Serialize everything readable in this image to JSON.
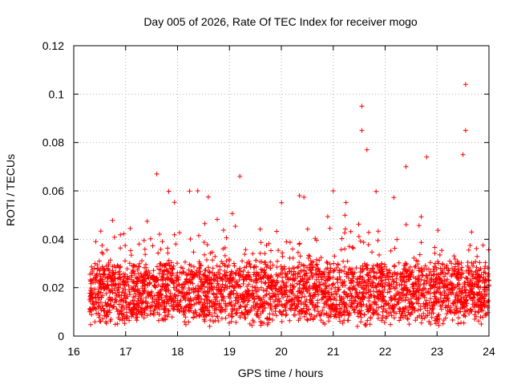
{
  "chart_data": {
    "type": "scatter",
    "title": "Day 005 of 2026, Rate Of TEC Index for receiver mogo",
    "xlabel": "GPS time / hours",
    "ylabel": "ROTI / TECUs",
    "xlim": [
      16,
      24
    ],
    "ylim": [
      0,
      0.12
    ],
    "x_ticks": [
      "16",
      "17",
      "18",
      "19",
      "20",
      "21",
      "22",
      "23",
      "24"
    ],
    "y_ticks": [
      "0",
      "0.02",
      "0.04",
      "0.06",
      "0.08",
      "0.1",
      "0.12"
    ],
    "grid": true,
    "marker": "+",
    "color": "#ff0000",
    "notable_points": [
      {
        "x": 17.6,
        "y": 0.067
      },
      {
        "x": 19.2,
        "y": 0.066
      },
      {
        "x": 21.55,
        "y": 0.095
      },
      {
        "x": 21.55,
        "y": 0.085
      },
      {
        "x": 21.65,
        "y": 0.077
      },
      {
        "x": 22.8,
        "y": 0.074
      },
      {
        "x": 22.4,
        "y": 0.07
      },
      {
        "x": 23.55,
        "y": 0.104
      },
      {
        "x": 23.55,
        "y": 0.085
      },
      {
        "x": 23.5,
        "y": 0.075
      },
      {
        "x": 20.35,
        "y": 0.058
      },
      {
        "x": 21.0,
        "y": 0.06
      }
    ],
    "series": [
      {
        "name": "ROTI",
        "x_start": 16.3,
        "x_end": 24.0,
        "baseline_mean": 0.018,
        "baseline_spread": 0.012,
        "min_value": 0.004,
        "max_value": 0.104
      }
    ]
  }
}
